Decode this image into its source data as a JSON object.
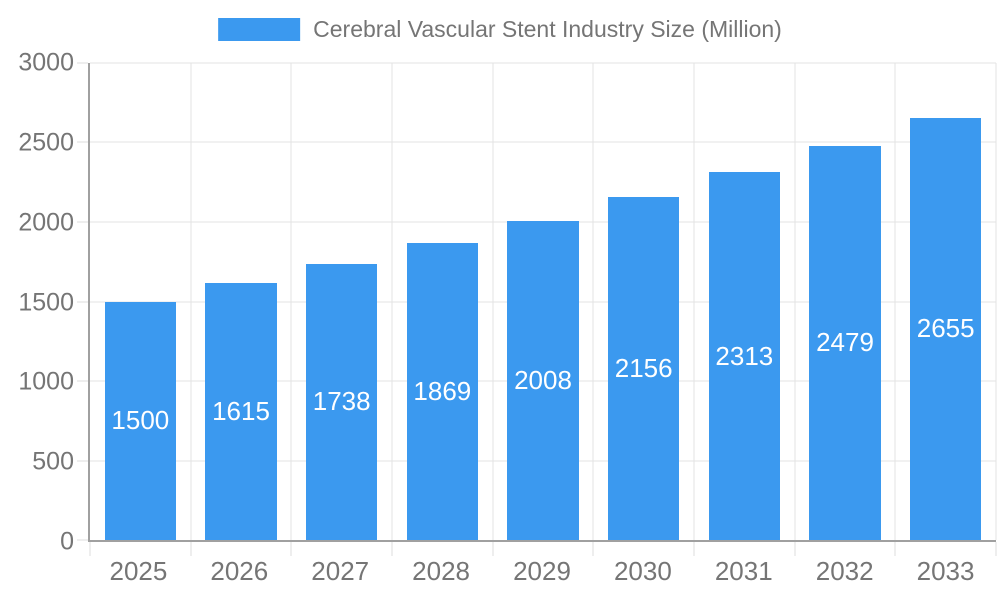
{
  "chart_data": {
    "type": "bar",
    "title": "Cerebral Vascular Stent Industry Size (Million)",
    "categories": [
      "2025",
      "2026",
      "2027",
      "2028",
      "2029",
      "2030",
      "2031",
      "2032",
      "2033"
    ],
    "values": [
      1500,
      1615,
      1738,
      1869,
      2008,
      2156,
      2313,
      2479,
      2655
    ],
    "value_labels": [
      "1500",
      "1615",
      "1738",
      "1869",
      "2008",
      "2156",
      "2313",
      "2479",
      "2655"
    ],
    "xlabel": "",
    "ylabel": "",
    "ylim": [
      0,
      3000
    ],
    "ytick_step": 500,
    "y_tick_values": [
      0,
      500,
      1000,
      1500,
      2000,
      2500,
      3000
    ],
    "y_tick_labels": [
      "0",
      "500",
      "1000",
      "1500",
      "2000",
      "2500",
      "3000"
    ],
    "grid": true,
    "legend_position": "top-center",
    "value_label_position": "inside-center",
    "colors": {
      "bar": "#3B99EF",
      "value_label": "#FFFFFF",
      "axis_text": "#757575",
      "title_text": "#757575",
      "gridline": "#E3E3E3",
      "axis_line": "#A0A0A0",
      "tick": "#DCDCDC",
      "background": "#FFFFFF"
    }
  }
}
